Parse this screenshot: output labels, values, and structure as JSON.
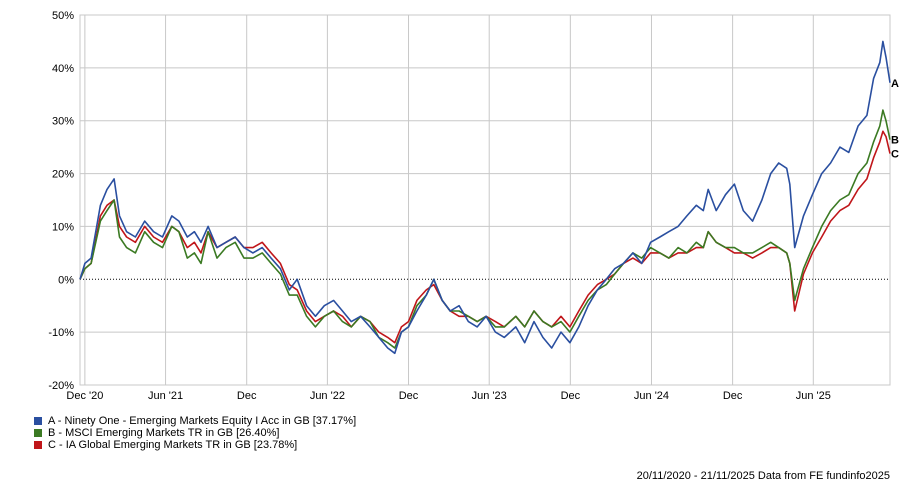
{
  "chart_data": {
    "type": "line",
    "title": "",
    "xlabel": "",
    "ylabel": "",
    "ylim": [
      -20,
      50
    ],
    "y_ticks": [
      50,
      40,
      30,
      20,
      10,
      0,
      -10,
      -20
    ],
    "y_tick_labels": [
      "50%",
      "40%",
      "30%",
      "20%",
      "10%",
      "0%",
      "-10%",
      "-20%"
    ],
    "x_range": [
      "2020-11-20",
      "2025-11-21"
    ],
    "x_ticks": [
      {
        "label": "Dec '20",
        "date": "2020-12-01"
      },
      {
        "label": "Jun '21",
        "date": "2021-06-01"
      },
      {
        "label": "Dec",
        "date": "2021-12-01"
      },
      {
        "label": "Jun '22",
        "date": "2022-06-01"
      },
      {
        "label": "Dec",
        "date": "2022-12-01"
      },
      {
        "label": "Jun '23",
        "date": "2023-06-01"
      },
      {
        "label": "Dec",
        "date": "2023-12-01"
      },
      {
        "label": "Jun '24",
        "date": "2024-06-01"
      },
      {
        "label": "Dec",
        "date": "2024-12-01"
      },
      {
        "label": "Jun '25",
        "date": "2025-06-01"
      }
    ],
    "grid": true,
    "zero_line": "dotted",
    "legend_position": "bottom-left",
    "x": [
      "2020-11-20",
      "2020-12-01",
      "2020-12-15",
      "2021-01-05",
      "2021-01-20",
      "2021-02-05",
      "2021-02-17",
      "2021-03-05",
      "2021-03-25",
      "2021-04-15",
      "2021-05-05",
      "2021-05-25",
      "2021-06-15",
      "2021-07-01",
      "2021-07-20",
      "2021-08-05",
      "2021-08-20",
      "2021-09-05",
      "2021-09-25",
      "2021-10-15",
      "2021-11-05",
      "2021-11-25",
      "2021-12-15",
      "2022-01-05",
      "2022-01-25",
      "2022-02-15",
      "2022-03-07",
      "2022-03-25",
      "2022-04-15",
      "2022-05-05",
      "2022-05-25",
      "2022-06-15",
      "2022-07-05",
      "2022-07-25",
      "2022-08-15",
      "2022-09-05",
      "2022-09-25",
      "2022-10-15",
      "2022-10-31",
      "2022-11-15",
      "2022-12-01",
      "2022-12-20",
      "2023-01-10",
      "2023-01-27",
      "2023-02-15",
      "2023-03-05",
      "2023-03-25",
      "2023-04-15",
      "2023-05-05",
      "2023-05-25",
      "2023-06-15",
      "2023-07-05",
      "2023-07-31",
      "2023-08-20",
      "2023-09-10",
      "2023-09-30",
      "2023-10-20",
      "2023-11-10",
      "2023-11-30",
      "2023-12-20",
      "2024-01-10",
      "2024-01-31",
      "2024-02-20",
      "2024-03-10",
      "2024-03-30",
      "2024-04-20",
      "2024-05-10",
      "2024-05-30",
      "2024-06-20",
      "2024-07-10",
      "2024-07-31",
      "2024-08-20",
      "2024-09-10",
      "2024-09-26",
      "2024-10-07",
      "2024-10-25",
      "2024-11-15",
      "2024-12-05",
      "2024-12-25",
      "2025-01-15",
      "2025-02-05",
      "2025-02-25",
      "2025-03-15",
      "2025-04-02",
      "2025-04-09",
      "2025-04-20",
      "2025-05-10",
      "2025-05-30",
      "2025-06-20",
      "2025-07-10",
      "2025-07-31",
      "2025-08-20",
      "2025-09-10",
      "2025-09-30",
      "2025-10-15",
      "2025-10-29",
      "2025-11-05",
      "2025-11-12",
      "2025-11-21"
    ],
    "series": [
      {
        "name": "A - Ninety One - Emerging Markets Equity I Acc in GB [37.17%]",
        "color": "#2a4fa0",
        "values": [
          0,
          3,
          4,
          14,
          17,
          19,
          12,
          9,
          8,
          11,
          9,
          8,
          12,
          11,
          8,
          9,
          7,
          10,
          6,
          7,
          8,
          6,
          5,
          6,
          4,
          2,
          -2,
          0,
          -5,
          -7,
          -5,
          -4,
          -6,
          -8,
          -7,
          -9,
          -11,
          -13,
          -14,
          -10,
          -9,
          -6,
          -3,
          0,
          -4,
          -6,
          -5,
          -8,
          -9,
          -7,
          -10,
          -11,
          -9,
          -12,
          -8,
          -11,
          -13,
          -10,
          -12,
          -9,
          -5,
          -2,
          0,
          2,
          3,
          5,
          3,
          7,
          8,
          9,
          10,
          12,
          14,
          13,
          17,
          13,
          16,
          18,
          13,
          11,
          15,
          20,
          22,
          21,
          18,
          6,
          12,
          16,
          20,
          22,
          25,
          24,
          29,
          31,
          38,
          41,
          45,
          42,
          37.17
        ]
      },
      {
        "name": "B - MSCI Emerging Markets TR in GB [26.40%]",
        "color": "#3b7a23",
        "values": [
          0,
          2,
          3,
          11,
          13,
          15,
          8,
          6,
          5,
          9,
          7,
          6,
          10,
          9,
          4,
          5,
          3,
          9,
          4,
          6,
          7,
          4,
          4,
          5,
          3,
          1,
          -3,
          -3,
          -7,
          -9,
          -7,
          -6,
          -8,
          -9,
          -7,
          -8,
          -11,
          -12,
          -13,
          -10,
          -9,
          -5,
          -3,
          0,
          -4,
          -6,
          -6,
          -7,
          -8,
          -7,
          -9,
          -9,
          -7,
          -9,
          -6,
          -8,
          -9,
          -8,
          -10,
          -7,
          -4,
          -2,
          -1,
          1,
          3,
          5,
          4,
          6,
          5,
          4,
          6,
          5,
          7,
          6,
          9,
          7,
          6,
          6,
          5,
          5,
          6,
          7,
          6,
          5,
          3,
          -4,
          2,
          6,
          10,
          13,
          15,
          16,
          20,
          22,
          26,
          29,
          32,
          30,
          26.4
        ]
      },
      {
        "name": "C - IA Global Emerging Markets TR in GB [23.78%]",
        "color": "#c0161a",
        "values": [
          0,
          2,
          3,
          12,
          14,
          15,
          10,
          8,
          7,
          10,
          8,
          7,
          10,
          9,
          6,
          7,
          5,
          9,
          6,
          7,
          8,
          6,
          6,
          7,
          5,
          3,
          -1,
          -2,
          -6,
          -8,
          -7,
          -6,
          -7,
          -9,
          -7,
          -8,
          -10,
          -11,
          -12,
          -9,
          -8,
          -4,
          -2,
          -1,
          -4,
          -6,
          -7,
          -7,
          -8,
          -7,
          -8,
          -9,
          -7,
          -9,
          -6,
          -8,
          -9,
          -7,
          -9,
          -6,
          -3,
          -1,
          0,
          1,
          3,
          4,
          3,
          5,
          5,
          4,
          5,
          5,
          6,
          6,
          9,
          7,
          6,
          5,
          5,
          4,
          5,
          6,
          6,
          5,
          3,
          -6,
          1,
          5,
          8,
          11,
          13,
          14,
          17,
          19,
          23,
          26,
          28,
          27,
          23.78
        ]
      }
    ],
    "end_labels": [
      "A",
      "B",
      "C"
    ]
  },
  "colors": {
    "A": "#2a4fa0",
    "B": "#3b7a23",
    "C": "#c0161a",
    "grid": "#c8c8c8"
  },
  "legend": {
    "items": [
      {
        "label": "A - Ninety One - Emerging Markets Equity I Acc in GB [37.17%]",
        "color": "#2a4fa0"
      },
      {
        "label": "B - MSCI Emerging Markets TR in GB [26.40%]",
        "color": "#3b7a23"
      },
      {
        "label": "C - IA Global Emerging Markets TR in GB [23.78%]",
        "color": "#c0161a"
      }
    ]
  },
  "footer": {
    "text": "20/11/2020 - 21/11/2025 Data from FE fundinfo2025"
  }
}
